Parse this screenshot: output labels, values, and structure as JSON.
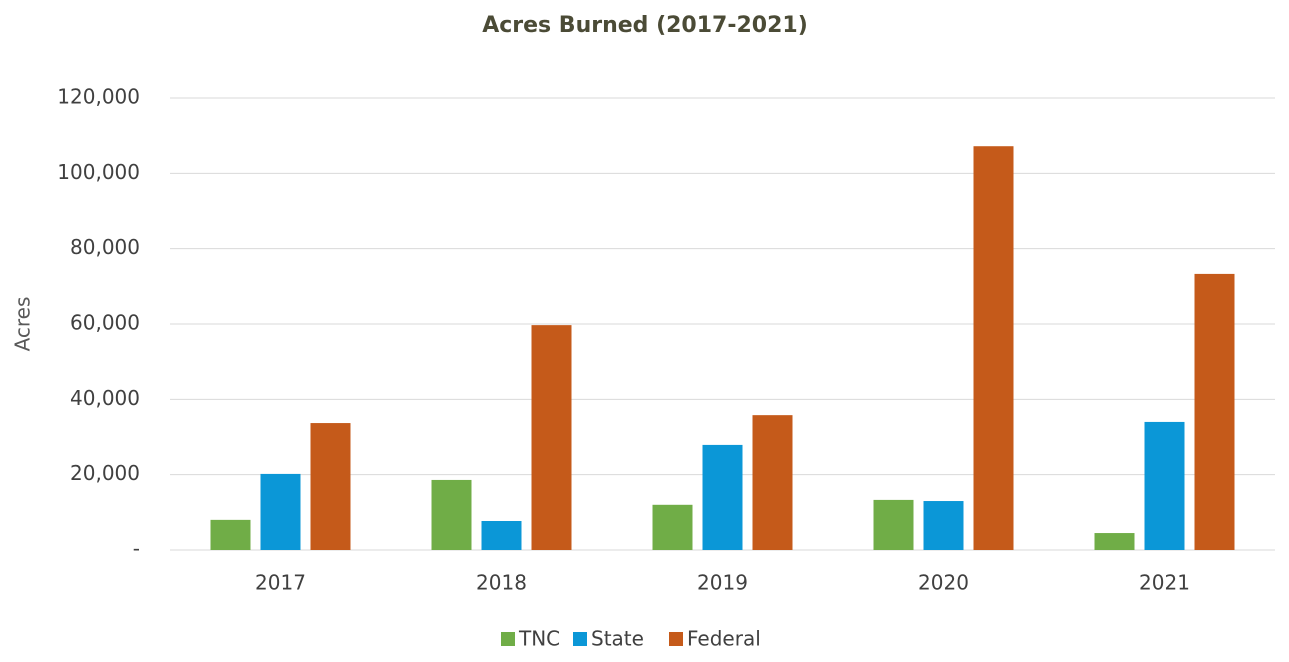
{
  "chart_data": {
    "type": "bar",
    "title": "Acres Burned (2017-2021)",
    "y_label": "Acres",
    "categories": [
      "2017",
      "2018",
      "2019",
      "2020",
      "2021"
    ],
    "series": [
      {
        "name": "TNC",
        "color": "#70ad47",
        "values": [
          8000,
          18600,
          12000,
          13300,
          4500
        ]
      },
      {
        "name": "State",
        "color": "#0b97d7",
        "values": [
          20200,
          7700,
          27900,
          13000,
          34000
        ]
      },
      {
        "name": "Federal",
        "color": "#c55a1a",
        "values": [
          33700,
          59700,
          35800,
          107200,
          73300
        ]
      }
    ],
    "ylim": [
      0,
      120000
    ],
    "yticks": [
      {
        "value": 0,
        "label": "-"
      },
      {
        "value": 20000,
        "label": "20,000"
      },
      {
        "value": 40000,
        "label": "40,000"
      },
      {
        "value": 60000,
        "label": "60,000"
      },
      {
        "value": 80000,
        "label": "80,000"
      },
      {
        "value": 100000,
        "label": "100,000"
      },
      {
        "value": 120000,
        "label": "120,000"
      }
    ],
    "grid": true,
    "legend": "bottom"
  }
}
